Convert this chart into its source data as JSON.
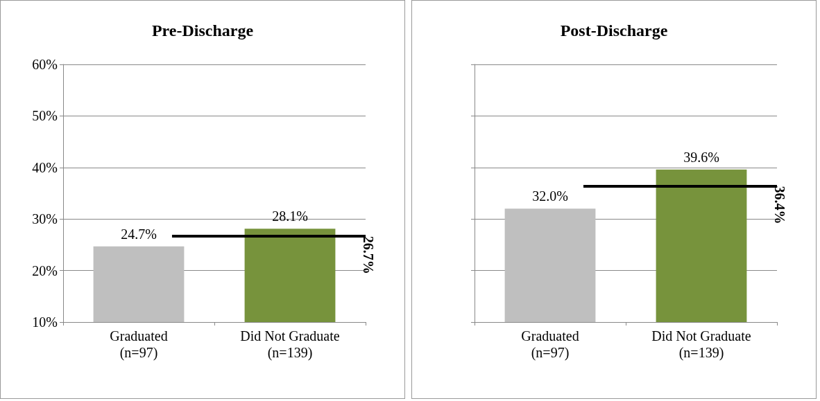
{
  "chart_data": [
    {
      "type": "bar",
      "title": "Pre-Discharge",
      "categories": [
        "Graduated\n(n=97)",
        "Did Not Graduate\n(n=139)"
      ],
      "values": [
        24.7,
        28.1
      ],
      "colors": [
        "#bfbfbf",
        "#77933c"
      ],
      "value_labels": [
        "24.7%",
        "28.1%"
      ],
      "ylim": [
        10,
        60
      ],
      "yticks": [
        {
          "value": 10,
          "label": "10%"
        },
        {
          "value": 20,
          "label": "20%"
        },
        {
          "value": 30,
          "label": "30%"
        },
        {
          "value": 40,
          "label": "40%"
        },
        {
          "value": 50,
          "label": "50%"
        },
        {
          "value": 60,
          "label": "60%"
        }
      ],
      "grid": "y",
      "ref_lines": [
        {
          "axis": "y",
          "value": 26.7,
          "label": "26.7%",
          "color": "#000000"
        }
      ]
    },
    {
      "type": "bar",
      "title": "Post-Discharge",
      "categories": [
        "Graduated\n(n=97)",
        "Did Not Graduate\n(n=139)"
      ],
      "values": [
        32.0,
        39.6
      ],
      "colors": [
        "#bfbfbf",
        "#77933c"
      ],
      "value_labels": [
        "32.0%",
        "39.6%"
      ],
      "ylim": [
        10,
        60
      ],
      "yticks": [
        10,
        20,
        30,
        40,
        50,
        60
      ],
      "grid": "y",
      "tick_labels": "x",
      "ref_lines": [
        {
          "axis": "y",
          "value": 36.4,
          "label": "36.4%",
          "color": "#000000"
        }
      ]
    }
  ]
}
